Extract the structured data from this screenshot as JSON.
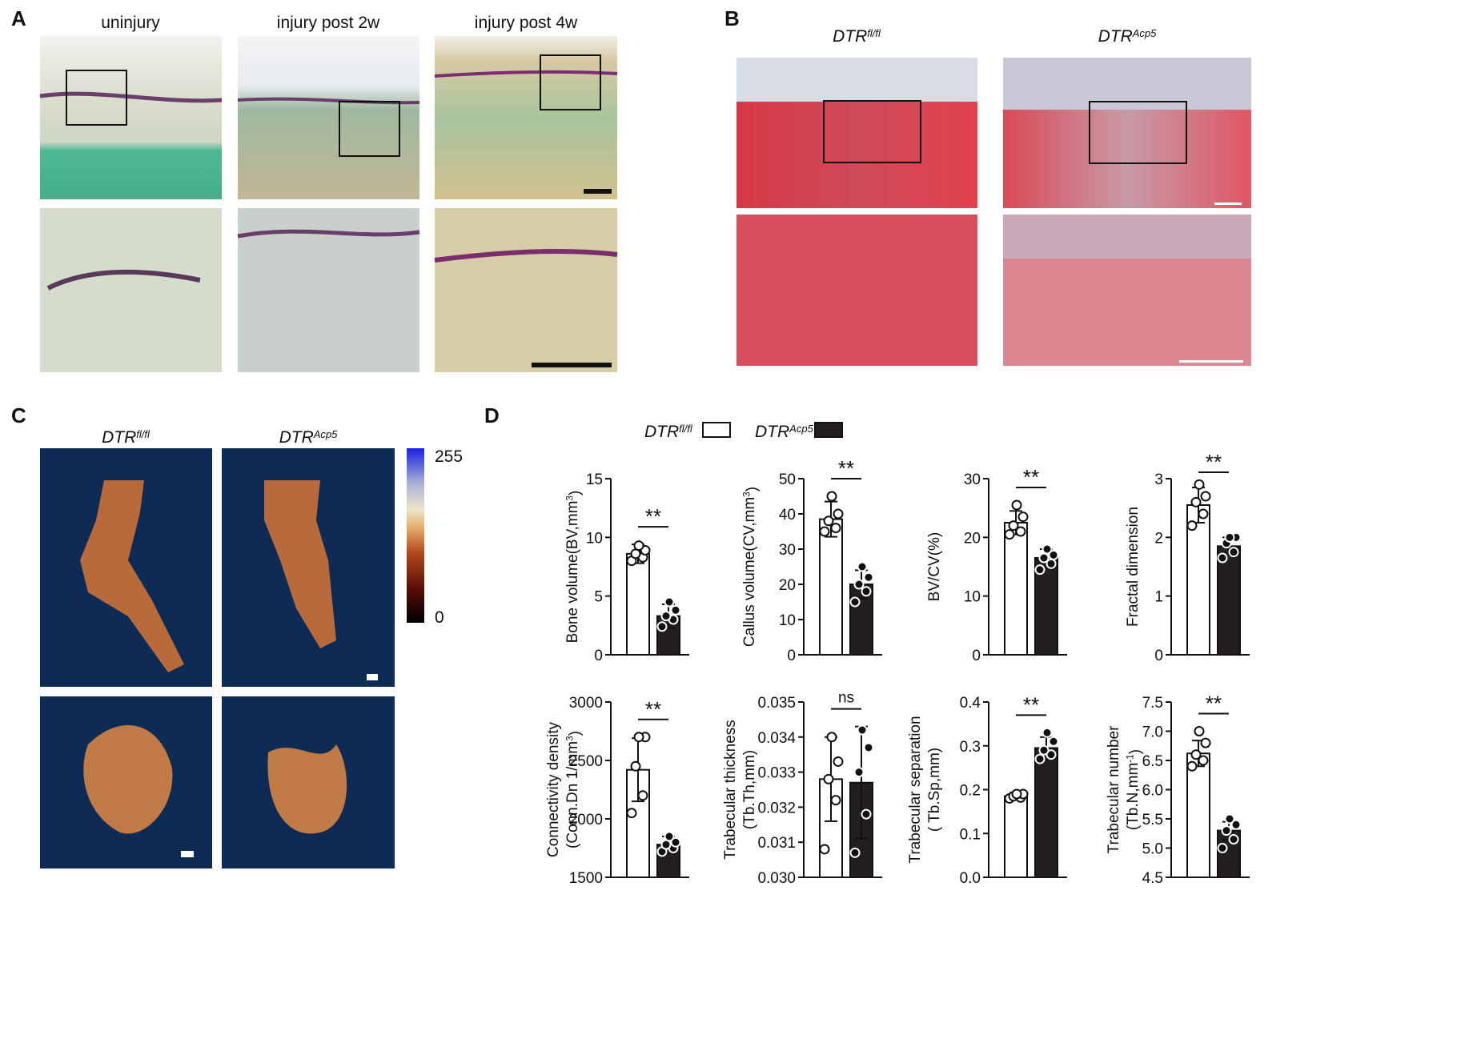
{
  "panel_a": {
    "letter": "A",
    "titles": [
      "uninjury",
      "injury post 2w",
      "injury post 4w"
    ]
  },
  "panel_b": {
    "letter": "B",
    "titles": [
      [
        {
          "t": "DTR"
        },
        {
          "t": "fl/fl",
          "sup": true
        }
      ],
      [
        {
          "t": "DTR"
        },
        {
          "t": "Acp5",
          "sup": true
        }
      ]
    ]
  },
  "panel_c": {
    "letter": "C",
    "titles": [
      [
        {
          "t": "DTR"
        },
        {
          "t": "fl/fl",
          "sup": true
        }
      ],
      [
        {
          "t": "DTR"
        },
        {
          "t": "Acp5",
          "sup": true
        }
      ]
    ],
    "colorbar_ticks": [
      255,
      0
    ]
  },
  "panel_d": {
    "letter": "D",
    "legend": [
      {
        "name": [
          {
            "t": "DTR"
          },
          {
            "t": "fl/fl",
            "sup": true
          }
        ],
        "color": "#ffffff"
      },
      {
        "name": [
          {
            "t": "DTR"
          },
          {
            "t": "Acp5",
            "sup": true
          }
        ],
        "color": "#231f20"
      }
    ]
  },
  "chart_data": [
    {
      "type": "bar",
      "ylabel": [
        [
          {
            "t": "Bone volume(BV,mm"
          },
          {
            "t": "3",
            "sup": true
          },
          {
            "t": ")"
          }
        ]
      ],
      "categories": [
        null,
        null
      ],
      "values": [
        8.6,
        3.3
      ],
      "errors": [
        0.8,
        1.0
      ],
      "points": [
        [
          8.0,
          8.3,
          8.6,
          8.9,
          9.3
        ],
        [
          2.4,
          3.0,
          3.3,
          3.8,
          4.5
        ]
      ],
      "ylim": [
        0,
        15
      ],
      "yticks": [
        0,
        5,
        10,
        15
      ],
      "annotation": "**"
    },
    {
      "type": "bar",
      "ylabel": [
        [
          {
            "t": "Callus volume(CV,mm"
          },
          {
            "t": "3",
            "sup": true
          },
          {
            "t": ")"
          }
        ]
      ],
      "categories": [
        null,
        null
      ],
      "values": [
        38.5,
        20
      ],
      "errors": [
        5,
        4
      ],
      "points": [
        [
          35,
          36,
          38,
          40,
          45
        ],
        [
          15,
          18,
          20,
          22,
          25
        ]
      ],
      "ylim": [
        0,
        50
      ],
      "yticks": [
        0,
        10,
        20,
        30,
        40,
        50
      ],
      "annotation": "**"
    },
    {
      "type": "bar",
      "ylabel": [
        [
          {
            "t": "BV/CV(%)"
          }
        ]
      ],
      "categories": [
        null,
        null
      ],
      "values": [
        22.5,
        16.5
      ],
      "errors": [
        2,
        1.5
      ],
      "points": [
        [
          20.5,
          21,
          22,
          23.5,
          25.5
        ],
        [
          14.5,
          15.5,
          16.5,
          17,
          18
        ]
      ],
      "ylim": [
        0,
        30
      ],
      "yticks": [
        0,
        10,
        20,
        30
      ],
      "annotation": "**"
    },
    {
      "type": "bar",
      "ylabel": [
        [
          {
            "t": "Fractal dimension"
          }
        ]
      ],
      "categories": [
        null,
        null
      ],
      "values": [
        2.55,
        1.85
      ],
      "errors": [
        0.3,
        0.15
      ],
      "points": [
        [
          2.2,
          2.4,
          2.6,
          2.7,
          2.9
        ],
        [
          1.65,
          1.75,
          1.9,
          2.0,
          2.0
        ]
      ],
      "ylim": [
        0,
        3
      ],
      "yticks": [
        0,
        1,
        2,
        3
      ],
      "annotation": "**"
    },
    {
      "type": "bar",
      "ylabel": [
        [
          {
            "t": "Connectivity density"
          }
        ],
        [
          {
            "t": "(Conn.Dn 1/mm"
          },
          {
            "t": "3",
            "sup": true
          },
          {
            "t": ")"
          }
        ]
      ],
      "categories": [
        null,
        null
      ],
      "values": [
        2420,
        1780
      ],
      "errors": [
        270,
        70
      ],
      "points": [
        [
          2050,
          2200,
          2450,
          2700,
          2700
        ],
        [
          1720,
          1750,
          1780,
          1800,
          1850
        ]
      ],
      "ylim": [
        1500,
        3000
      ],
      "yticks": [
        1500,
        2000,
        2500,
        3000
      ],
      "annotation": "**"
    },
    {
      "type": "bar",
      "ylabel": [
        [
          {
            "t": "Trabecular thickness"
          }
        ],
        [
          {
            "t": "(Tb.Th,mm)"
          }
        ]
      ],
      "categories": [
        null,
        null
      ],
      "values": [
        0.0328,
        0.0327
      ],
      "errors": [
        0.0012,
        0.0016
      ],
      "points": [
        [
          0.0308,
          0.0322,
          0.0328,
          0.0333,
          0.034
        ],
        [
          0.0307,
          0.0318,
          0.033,
          0.0337,
          0.0342
        ]
      ],
      "ylim": [
        0.03,
        0.035
      ],
      "yticks": [
        {
          "value": 0.03,
          "label": "0.030"
        },
        0.031,
        0.032,
        0.033,
        0.034,
        0.035
      ],
      "annotation": "ns"
    },
    {
      "type": "bar",
      "ylabel": [
        [
          {
            "t": "Trabecular separation"
          }
        ],
        [
          {
            "t": "( Tb.Sp,mm)"
          }
        ]
      ],
      "categories": [
        null,
        null
      ],
      "values": [
        0.185,
        0.295
      ],
      "errors": [
        0.008,
        0.025
      ],
      "points": [
        [
          0.18,
          0.182,
          0.185,
          0.19,
          0.19
        ],
        [
          0.27,
          0.28,
          0.29,
          0.31,
          0.33
        ]
      ],
      "ylim": [
        0,
        0.4
      ],
      "yticks": [
        {
          "value": 0,
          "label": "0.0"
        },
        0.1,
        0.2,
        0.3,
        0.4
      ],
      "annotation": "**"
    },
    {
      "type": "bar",
      "ylabel": [
        [
          {
            "t": "Trabecular number"
          }
        ],
        [
          {
            "t": "(Tb.N,mm"
          },
          {
            "t": "-1",
            "sup": true
          },
          {
            "t": ")"
          }
        ]
      ],
      "categories": [
        null,
        null
      ],
      "values": [
        6.62,
        5.3
      ],
      "errors": [
        0.22,
        0.15
      ],
      "points": [
        [
          6.4,
          6.5,
          6.6,
          6.8,
          7.0
        ],
        [
          5.0,
          5.15,
          5.3,
          5.4,
          5.5
        ]
      ],
      "ylim": [
        4.5,
        7.5
      ],
      "yticks": [
        4.5,
        {
          "value": 5,
          "label": "5.0"
        },
        5.5,
        {
          "value": 6,
          "label": "6.0"
        },
        6.5,
        {
          "value": 7,
          "label": "7.0"
        },
        7.5
      ],
      "annotation": "**"
    }
  ]
}
